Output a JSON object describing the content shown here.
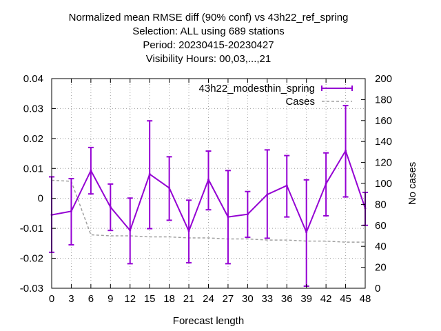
{
  "chart_data": {
    "type": "line",
    "title_lines": [
      "Normalized mean RMSE diff (90% conf) vs 43h22_ref_spring",
      "Selection: ALL using   689 stations",
      "Period: 20230415-20230427",
      "Visibility   Hours: 00,03,...,21"
    ],
    "xlabel": "Forecast length",
    "ylabel": "",
    "y2label": "No cases",
    "xlim": [
      0,
      48
    ],
    "ylim": [
      -0.03,
      0.04
    ],
    "y2lim": [
      0,
      200
    ],
    "x_ticks": [
      "0",
      "3",
      "6",
      "9",
      "12",
      "15",
      "18",
      "21",
      "24",
      "27",
      "30",
      "33",
      "36",
      "39",
      "42",
      "45",
      "48"
    ],
    "y_ticks": [
      "0.04",
      "0.03",
      "0.02",
      "0.01",
      "0",
      "-0.01",
      "-0.02",
      "-0.03"
    ],
    "y2_ticks": [
      "200",
      "180",
      "160",
      "140",
      "120",
      "100",
      "80",
      "60",
      "40",
      "20",
      "0"
    ],
    "grid": true,
    "legend_position": "top-right",
    "series": [
      {
        "name": "43h22_modesthin_spring",
        "color": "#9400d3",
        "x": [
          0,
          3,
          6,
          9,
          12,
          15,
          18,
          21,
          24,
          27,
          30,
          33,
          36,
          39,
          42,
          45,
          48
        ],
        "values": [
          -0.0055,
          -0.0043,
          0.0093,
          -0.0029,
          -0.0107,
          0.0081,
          0.0035,
          -0.0109,
          0.0063,
          -0.0062,
          -0.0053,
          0.0013,
          0.0043,
          -0.0113,
          0.0049,
          0.0159,
          -0.0033
        ],
        "err_low": [
          -0.018,
          -0.0155,
          0.0015,
          -0.0107,
          -0.0218,
          -0.0101,
          -0.0073,
          -0.0215,
          -0.0038,
          -0.0218,
          -0.013,
          -0.0133,
          -0.0062,
          -0.0293,
          -0.0058,
          0.0005,
          -0.009
        ],
        "err_high": [
          0.0072,
          0.0066,
          0.017,
          0.0048,
          0.0001,
          0.0259,
          0.0139,
          -0.0006,
          0.0158,
          0.0093,
          0.0023,
          0.0162,
          0.0143,
          0.0062,
          0.0152,
          0.031,
          0.002
        ]
      },
      {
        "name": "Cases",
        "color": "#a0a0a0",
        "axis": "y2",
        "x": [
          0,
          3,
          6,
          9,
          12,
          15,
          18,
          21,
          24,
          27,
          30,
          33,
          36,
          39,
          42,
          45,
          48
        ],
        "values": [
          103,
          102,
          51,
          50,
          50,
          49,
          49,
          48,
          48,
          47,
          47,
          46,
          46,
          45,
          45,
          44,
          44
        ]
      }
    ]
  }
}
